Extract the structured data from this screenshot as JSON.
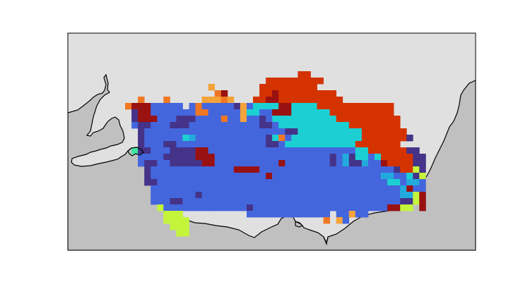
{
  "map": {
    "title": "",
    "colors": {
      "page_background": "#ffffff",
      "ocean": "#e0e0e0",
      "land": "#c0c0c0",
      "coastline": "#000000",
      "frame": "#000000"
    },
    "palette": {
      "B": "#4466dd",
      "N": "#443388",
      "D": "#991111",
      "R": "#d43300",
      "O": "#f07722",
      "Y": "#f4a23a",
      "C": "#1ccfd3",
      "K": "#22aadd",
      "L": "#c4f53b",
      "G": "#40e6a0"
    }
  }
}
